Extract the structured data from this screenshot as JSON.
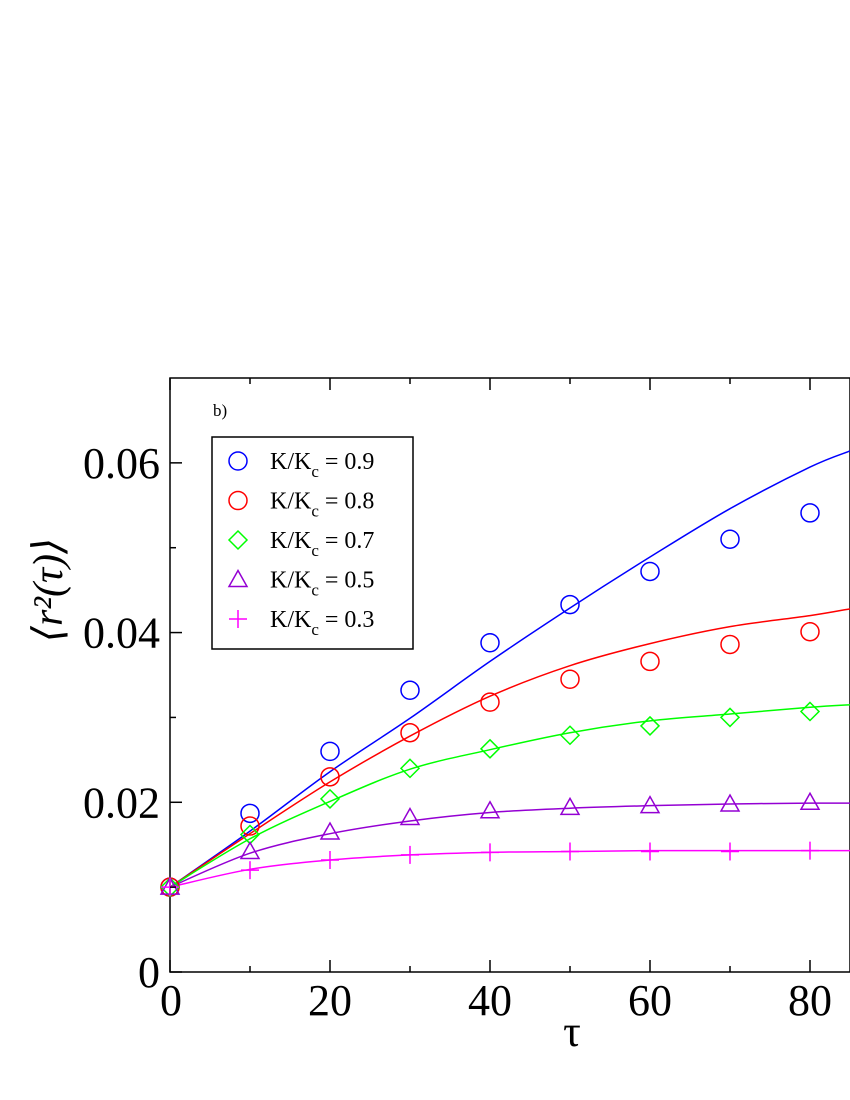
{
  "chart_data": {
    "type": "scatter",
    "panel_label": "b)",
    "xlabel": "τ",
    "ylabel": "⟨r²(τ)⟩",
    "xlim": [
      0,
      85
    ],
    "ylim": [
      0,
      0.07
    ],
    "x_ticks": [
      0,
      20,
      40,
      60,
      80
    ],
    "x_tick_labels": [
      "0",
      "20",
      "40",
      "60",
      "80"
    ],
    "y_ticks": [
      0,
      0.02,
      0.04,
      0.06
    ],
    "y_tick_labels": [
      "0",
      "0.02",
      "0.04",
      "0.06"
    ],
    "grid": false,
    "legend_position": "top-left",
    "x": [
      0,
      10,
      20,
      30,
      40,
      50,
      60,
      70,
      80
    ],
    "series": [
      {
        "name": "K/K_c = 0.9",
        "legend_main": "K/K",
        "legend_sub": "c",
        "legend_value": " = 0.9",
        "marker": "circle",
        "color": "#0000ff",
        "values": [
          0.01,
          0.0187,
          0.026,
          0.0332,
          0.0388,
          0.0433,
          0.0472,
          0.051,
          0.0541
        ],
        "fit_curve": [
          0.01,
          0.0166,
          0.0236,
          0.0299,
          0.0366,
          0.0429,
          0.0489,
          0.0546,
          0.0595,
          0.0614
        ]
      },
      {
        "name": "K/K_c = 0.8",
        "legend_main": "K/K",
        "legend_sub": "c",
        "legend_value": " = 0.8",
        "marker": "circle",
        "color": "#ff0000",
        "values": [
          0.01,
          0.0172,
          0.023,
          0.0282,
          0.0318,
          0.0345,
          0.0366,
          0.0386,
          0.0401
        ],
        "fit_curve": [
          0.01,
          0.0163,
          0.0224,
          0.0278,
          0.0325,
          0.0361,
          0.0387,
          0.0407,
          0.042,
          0.0428
        ]
      },
      {
        "name": "K/K_c = 0.7",
        "legend_main": "K/K",
        "legend_sub": "c",
        "legend_value": " = 0.7",
        "marker": "diamond",
        "color": "#00ff00",
        "values": [
          0.01,
          0.0162,
          0.0204,
          0.024,
          0.0263,
          0.0279,
          0.029,
          0.03,
          0.0307
        ],
        "fit_curve": [
          0.01,
          0.0157,
          0.0201,
          0.0239,
          0.0262,
          0.0282,
          0.0296,
          0.0304,
          0.0312,
          0.0315
        ]
      },
      {
        "name": "K/K_c = 0.5",
        "legend_main": "K/K",
        "legend_sub": "c",
        "legend_value": " = 0.5",
        "marker": "triangle",
        "color": "#9400d3",
        "values": [
          0.01,
          0.0142,
          0.0165,
          0.0182,
          0.019,
          0.0194,
          0.0196,
          0.0198,
          0.02
        ],
        "fit_curve": [
          0.01,
          0.014,
          0.0163,
          0.0178,
          0.0188,
          0.0193,
          0.0196,
          0.0198,
          0.0199,
          0.0199
        ]
      },
      {
        "name": "K/K_c = 0.3",
        "legend_main": "K/K",
        "legend_sub": "c",
        "legend_value": " = 0.3",
        "marker": "plus",
        "color": "#ff00ff",
        "values": [
          0.01,
          0.012,
          0.0132,
          0.0138,
          0.0141,
          0.0142,
          0.0142,
          0.0142,
          0.0143
        ],
        "fit_curve": [
          0.01,
          0.0121,
          0.0132,
          0.0138,
          0.0141,
          0.0142,
          0.0143,
          0.0143,
          0.0143,
          0.0143
        ]
      }
    ],
    "fit_x": [
      0,
      10,
      20,
      30,
      40,
      50,
      60,
      70,
      80,
      85
    ]
  }
}
